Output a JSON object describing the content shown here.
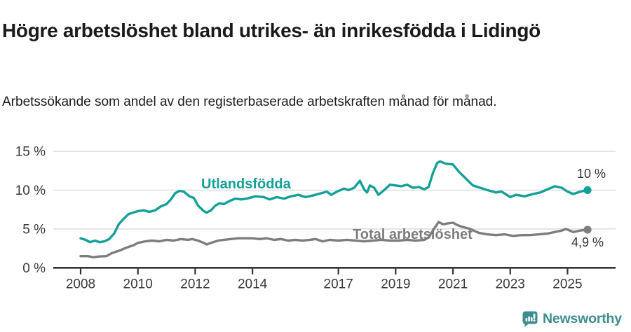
{
  "header": {
    "title": "Högre arbetslöshet bland utrikes- än inrikesfödda i Lidingö",
    "subtitle": "Arbetssökande som andel av den registerbaserade arbetskraften månad för månad."
  },
  "footer": {
    "brand": "Newsworthy",
    "brand_color": "#3d8e8e",
    "logo_icon": "bar-chart-speech-bubble-icon"
  },
  "colors": {
    "accent_teal": "#14a098",
    "series_gray": "#7d7d7d",
    "gridline": "#dcdcdc",
    "axis": "#333333",
    "text": "#1a1a1a"
  },
  "chart_data": {
    "type": "line",
    "title": "Högre arbetslöshet bland utrikes- än inrikesfödda i Lidingö",
    "subtitle": "Arbetssökande som andel av den registerbaserade arbetskraften månad för månad.",
    "xlabel": "",
    "ylabel": "",
    "grid": "horizontal",
    "legend_position": "inline-labels",
    "xlim": [
      2007.0,
      2026.7
    ],
    "ylim": [
      0,
      15
    ],
    "x_ticks": [
      2008,
      2010,
      2012,
      2014,
      2017,
      2019,
      2021,
      2023,
      2025
    ],
    "y_ticks": [
      {
        "v": 0,
        "label": "0 %"
      },
      {
        "v": 5,
        "label": "5 %"
      },
      {
        "v": 10,
        "label": "10 %"
      },
      {
        "v": 15,
        "label": "15 %"
      }
    ],
    "series": [
      {
        "name": "Utlandsfödda",
        "color": "#14a098",
        "end_label": "10 %",
        "end_value": 10.0,
        "points": [
          [
            2008.0,
            3.8
          ],
          [
            2008.17,
            3.6
          ],
          [
            2008.33,
            3.3
          ],
          [
            2008.5,
            3.5
          ],
          [
            2008.67,
            3.3
          ],
          [
            2008.83,
            3.4
          ],
          [
            2009.0,
            3.7
          ],
          [
            2009.17,
            4.4
          ],
          [
            2009.33,
            5.6
          ],
          [
            2009.5,
            6.3
          ],
          [
            2009.67,
            6.9
          ],
          [
            2009.83,
            7.1
          ],
          [
            2010.0,
            7.3
          ],
          [
            2010.2,
            7.4
          ],
          [
            2010.4,
            7.2
          ],
          [
            2010.6,
            7.4
          ],
          [
            2010.8,
            7.9
          ],
          [
            2011.0,
            8.2
          ],
          [
            2011.15,
            8.8
          ],
          [
            2011.3,
            9.6
          ],
          [
            2011.45,
            9.9
          ],
          [
            2011.6,
            9.8
          ],
          [
            2011.8,
            9.2
          ],
          [
            2011.95,
            9.0
          ],
          [
            2012.1,
            8.0
          ],
          [
            2012.3,
            7.3
          ],
          [
            2012.4,
            7.1
          ],
          [
            2012.55,
            7.4
          ],
          [
            2012.7,
            8.0
          ],
          [
            2012.85,
            8.3
          ],
          [
            2013.0,
            8.2
          ],
          [
            2013.2,
            8.6
          ],
          [
            2013.4,
            8.9
          ],
          [
            2013.6,
            8.8
          ],
          [
            2013.8,
            8.9
          ],
          [
            2014.1,
            9.2
          ],
          [
            2014.4,
            9.1
          ],
          [
            2014.6,
            8.8
          ],
          [
            2014.85,
            9.1
          ],
          [
            2015.1,
            8.9
          ],
          [
            2015.35,
            9.2
          ],
          [
            2015.6,
            9.4
          ],
          [
            2015.85,
            9.1
          ],
          [
            2016.1,
            9.3
          ],
          [
            2016.4,
            9.6
          ],
          [
            2016.6,
            9.8
          ],
          [
            2016.75,
            9.4
          ],
          [
            2016.95,
            9.8
          ],
          [
            2017.2,
            10.2
          ],
          [
            2017.35,
            10.0
          ],
          [
            2017.55,
            10.3
          ],
          [
            2017.75,
            11.2
          ],
          [
            2017.9,
            10.1
          ],
          [
            2018.0,
            9.7
          ],
          [
            2018.1,
            10.6
          ],
          [
            2018.25,
            10.3
          ],
          [
            2018.4,
            9.4
          ],
          [
            2018.6,
            10.0
          ],
          [
            2018.8,
            10.7
          ],
          [
            2019.0,
            10.6
          ],
          [
            2019.2,
            10.5
          ],
          [
            2019.4,
            10.7
          ],
          [
            2019.6,
            10.3
          ],
          [
            2019.8,
            10.4
          ],
          [
            2020.0,
            10.1
          ],
          [
            2020.15,
            10.4
          ],
          [
            2020.3,
            12.2
          ],
          [
            2020.45,
            13.5
          ],
          [
            2020.55,
            13.7
          ],
          [
            2020.75,
            13.4
          ],
          [
            2021.0,
            13.3
          ],
          [
            2021.2,
            12.4
          ],
          [
            2021.5,
            11.3
          ],
          [
            2021.7,
            10.6
          ],
          [
            2021.95,
            10.3
          ],
          [
            2022.2,
            10.0
          ],
          [
            2022.5,
            9.7
          ],
          [
            2022.7,
            9.8
          ],
          [
            2023.0,
            9.1
          ],
          [
            2023.2,
            9.4
          ],
          [
            2023.5,
            9.2
          ],
          [
            2023.8,
            9.5
          ],
          [
            2024.05,
            9.7
          ],
          [
            2024.3,
            10.1
          ],
          [
            2024.55,
            10.5
          ],
          [
            2024.8,
            10.3
          ],
          [
            2025.0,
            9.8
          ],
          [
            2025.2,
            9.5
          ],
          [
            2025.45,
            9.8
          ],
          [
            2025.7,
            10.0
          ]
        ]
      },
      {
        "name": "Total arbetslöshet",
        "color": "#7d7d7d",
        "end_label": "4,9 %",
        "end_value": 4.9,
        "points": [
          [
            2008.0,
            1.5
          ],
          [
            2008.25,
            1.5
          ],
          [
            2008.45,
            1.35
          ],
          [
            2008.65,
            1.45
          ],
          [
            2008.9,
            1.5
          ],
          [
            2009.1,
            1.9
          ],
          [
            2009.35,
            2.2
          ],
          [
            2009.6,
            2.6
          ],
          [
            2009.85,
            2.9
          ],
          [
            2010.0,
            3.2
          ],
          [
            2010.25,
            3.4
          ],
          [
            2010.5,
            3.5
          ],
          [
            2010.75,
            3.4
          ],
          [
            2011.0,
            3.6
          ],
          [
            2011.25,
            3.5
          ],
          [
            2011.5,
            3.7
          ],
          [
            2011.75,
            3.6
          ],
          [
            2011.9,
            3.7
          ],
          [
            2012.1,
            3.5
          ],
          [
            2012.3,
            3.2
          ],
          [
            2012.4,
            3.0
          ],
          [
            2012.55,
            3.2
          ],
          [
            2012.8,
            3.5
          ],
          [
            2013.0,
            3.6
          ],
          [
            2013.25,
            3.7
          ],
          [
            2013.5,
            3.8
          ],
          [
            2013.75,
            3.8
          ],
          [
            2014.0,
            3.8
          ],
          [
            2014.25,
            3.7
          ],
          [
            2014.5,
            3.8
          ],
          [
            2014.75,
            3.6
          ],
          [
            2015.0,
            3.7
          ],
          [
            2015.25,
            3.5
          ],
          [
            2015.5,
            3.6
          ],
          [
            2015.75,
            3.5
          ],
          [
            2016.0,
            3.6
          ],
          [
            2016.2,
            3.7
          ],
          [
            2016.45,
            3.4
          ],
          [
            2016.7,
            3.6
          ],
          [
            2017.0,
            3.5
          ],
          [
            2017.3,
            3.6
          ],
          [
            2017.6,
            3.5
          ],
          [
            2017.9,
            3.4
          ],
          [
            2018.2,
            3.5
          ],
          [
            2018.5,
            3.6
          ],
          [
            2018.8,
            3.5
          ],
          [
            2019.1,
            3.5
          ],
          [
            2019.4,
            3.6
          ],
          [
            2019.7,
            3.5
          ],
          [
            2020.0,
            3.6
          ],
          [
            2020.15,
            3.9
          ],
          [
            2020.3,
            4.8
          ],
          [
            2020.5,
            5.9
          ],
          [
            2020.65,
            5.6
          ],
          [
            2020.8,
            5.7
          ],
          [
            2021.0,
            5.8
          ],
          [
            2021.15,
            5.5
          ],
          [
            2021.3,
            5.3
          ],
          [
            2021.6,
            5.0
          ],
          [
            2021.9,
            4.5
          ],
          [
            2022.2,
            4.3
          ],
          [
            2022.5,
            4.2
          ],
          [
            2022.8,
            4.3
          ],
          [
            2023.1,
            4.1
          ],
          [
            2023.4,
            4.2
          ],
          [
            2023.7,
            4.2
          ],
          [
            2024.0,
            4.3
          ],
          [
            2024.3,
            4.4
          ],
          [
            2024.55,
            4.6
          ],
          [
            2024.8,
            4.8
          ],
          [
            2024.95,
            5.0
          ],
          [
            2025.2,
            4.6
          ],
          [
            2025.45,
            4.8
          ],
          [
            2025.7,
            4.9
          ]
        ]
      }
    ]
  }
}
